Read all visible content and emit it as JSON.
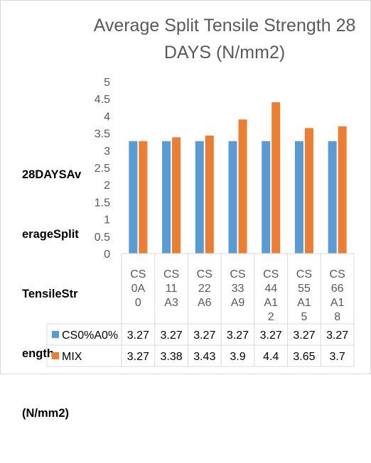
{
  "chart_data": {
    "type": "bar",
    "title": "Average Split Tensile Strength 28 DAYS (N/mm2)",
    "title_lines": [
      "Average Split Tensile Strength 28",
      "DAYS (N/mm2)"
    ],
    "ylabel": "28DAYSAverageSplit TensileStrength (N/mm2)",
    "ylabel_lines": [
      "28DAYSAv",
      "erageSplit",
      "TensileStr",
      "ength",
      "(N/mm2)"
    ],
    "xlabel": "",
    "ylim": [
      0,
      5
    ],
    "yticks": [
      "0",
      "0.5",
      "1",
      "1.5",
      "2",
      "2.5",
      "3",
      "3.5",
      "4",
      "4.5",
      "5"
    ],
    "grid": false,
    "legend": "data-table",
    "categories": [
      "CS0A0",
      "CS11A3",
      "CS22A6",
      "CS33A9",
      "CS44A12",
      "CS55A15",
      "CS66A18"
    ],
    "category_lines": [
      [
        "CS",
        "0A",
        "0"
      ],
      [
        "CS",
        "11",
        "A3"
      ],
      [
        "CS",
        "22",
        "A6"
      ],
      [
        "CS",
        "33",
        "A9"
      ],
      [
        "CS",
        "44",
        "A1",
        "2"
      ],
      [
        "CS",
        "55",
        "A1",
        "5"
      ],
      [
        "CS",
        "66",
        "A1",
        "8"
      ]
    ],
    "series": [
      {
        "name": "CS0%A0%",
        "color": "#5b9bd5",
        "values": [
          3.27,
          3.27,
          3.27,
          3.27,
          3.27,
          3.27,
          3.27
        ],
        "labels": [
          "3.27",
          "3.27",
          "3.27",
          "3.27",
          "3.27",
          "3.27",
          "3.27"
        ]
      },
      {
        "name": "MIX",
        "color": "#ed7d31",
        "values": [
          3.27,
          3.38,
          3.43,
          3.9,
          4.4,
          3.65,
          3.7
        ],
        "labels": [
          "3.27",
          "3.38",
          "3.43",
          "3.9",
          "4.4",
          "3.65",
          "3.7"
        ]
      }
    ]
  }
}
